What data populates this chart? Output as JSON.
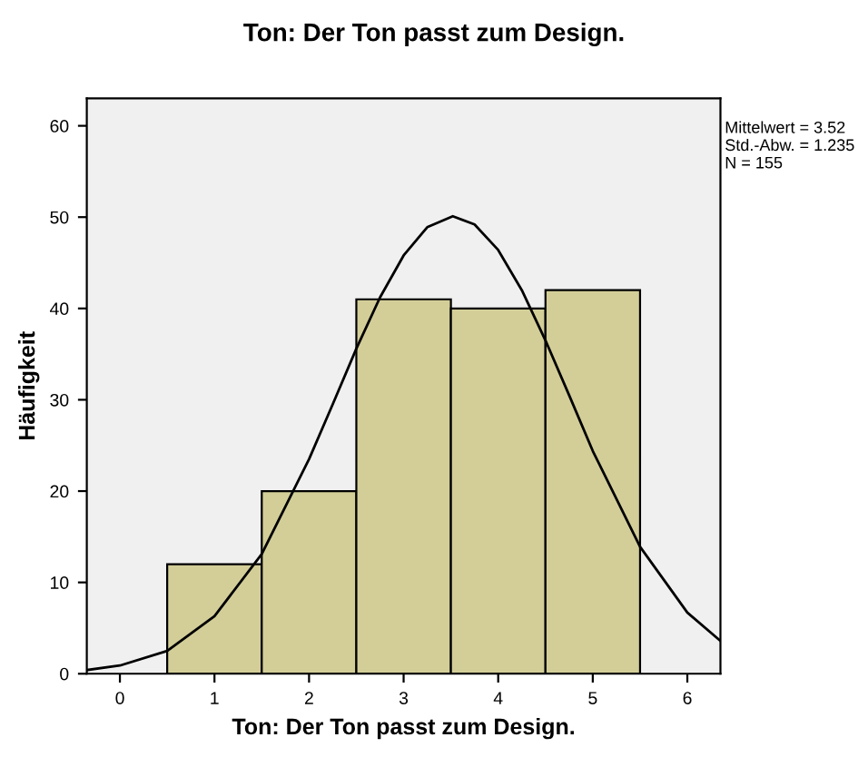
{
  "chart_data": {
    "type": "histogram",
    "title": "Ton: Der Ton passt zum Design.",
    "xlabel": "Ton: Der Ton passt zum Design.",
    "ylabel": "Häufigkeit",
    "bins": [
      0.5,
      1.5,
      2.5,
      3.5,
      4.5,
      5.5
    ],
    "values": [
      12,
      20,
      41,
      40,
      42
    ],
    "color": "#d3ce98",
    "series": [
      {
        "type": "line",
        "color": "#000000",
        "x": [
          -0.35,
          0,
          0.5,
          1,
          1.5,
          2,
          2.25,
          2.5,
          2.75,
          3,
          3.25,
          3.52,
          3.75,
          4,
          4.25,
          4.5,
          4.75,
          5,
          5.5,
          6,
          6.35
        ],
        "values": [
          0.4,
          0.9,
          2.5,
          6.3,
          13.1,
          23.5,
          29.5,
          35.6,
          41.2,
          45.8,
          48.9,
          50.1,
          49.2,
          46.4,
          42,
          36.5,
          30.5,
          24.4,
          13.9,
          6.7,
          3.6
        ]
      }
    ],
    "xlim": [
      -0.35,
      6.35
    ],
    "ylim": [
      0,
      63
    ],
    "xticks": [
      0,
      1,
      2,
      3,
      4,
      5,
      6
    ],
    "yticks": [
      0,
      10,
      20,
      30,
      40,
      50,
      60
    ],
    "grid": false,
    "legend": false,
    "annotations": [
      "Mittelwert = 3.52\nStd.-Abw. = 1.235\nN = 155"
    ]
  }
}
